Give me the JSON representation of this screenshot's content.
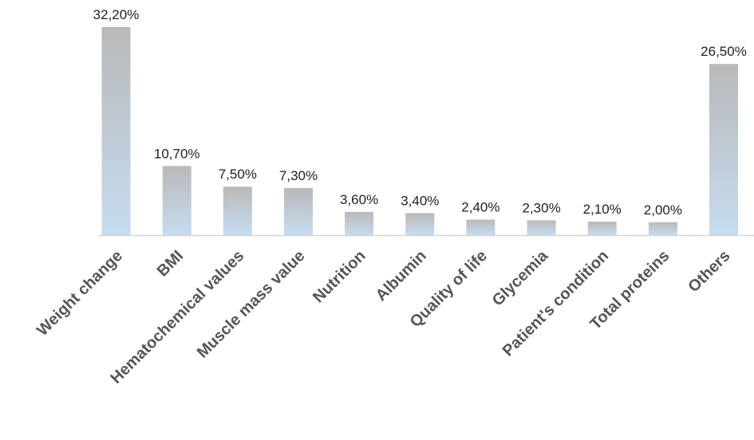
{
  "chart_data": {
    "type": "bar",
    "categories": [
      "Weight change",
      "BMI",
      "Hematochemical values",
      "Muscle mass value",
      "Nutrition",
      "Albumin",
      "Quality of life",
      "Glycemia",
      "Patient's condition",
      "Total proteins",
      "Others"
    ],
    "values": [
      32.2,
      10.7,
      7.5,
      7.3,
      3.6,
      3.4,
      2.4,
      2.3,
      2.1,
      2.0,
      26.5
    ],
    "data_labels": [
      "32,20%",
      "10,70%",
      "7,50%",
      "7,30%",
      "3,60%",
      "3,40%",
      "2,40%",
      "2,30%",
      "2,10%",
      "2,00%",
      "26,50%"
    ],
    "unit": "%",
    "ylim": [
      0,
      32.2
    ],
    "grid": false,
    "legend": "none",
    "title": "",
    "xlabel": "",
    "ylabel": "",
    "colors": {
      "bar_top": "#b9b9b9",
      "bar_bottom": "#c6dcf0",
      "axis": "#d4d4d4",
      "value_text": "#1f1f1f",
      "category_text": "#555555"
    }
  }
}
